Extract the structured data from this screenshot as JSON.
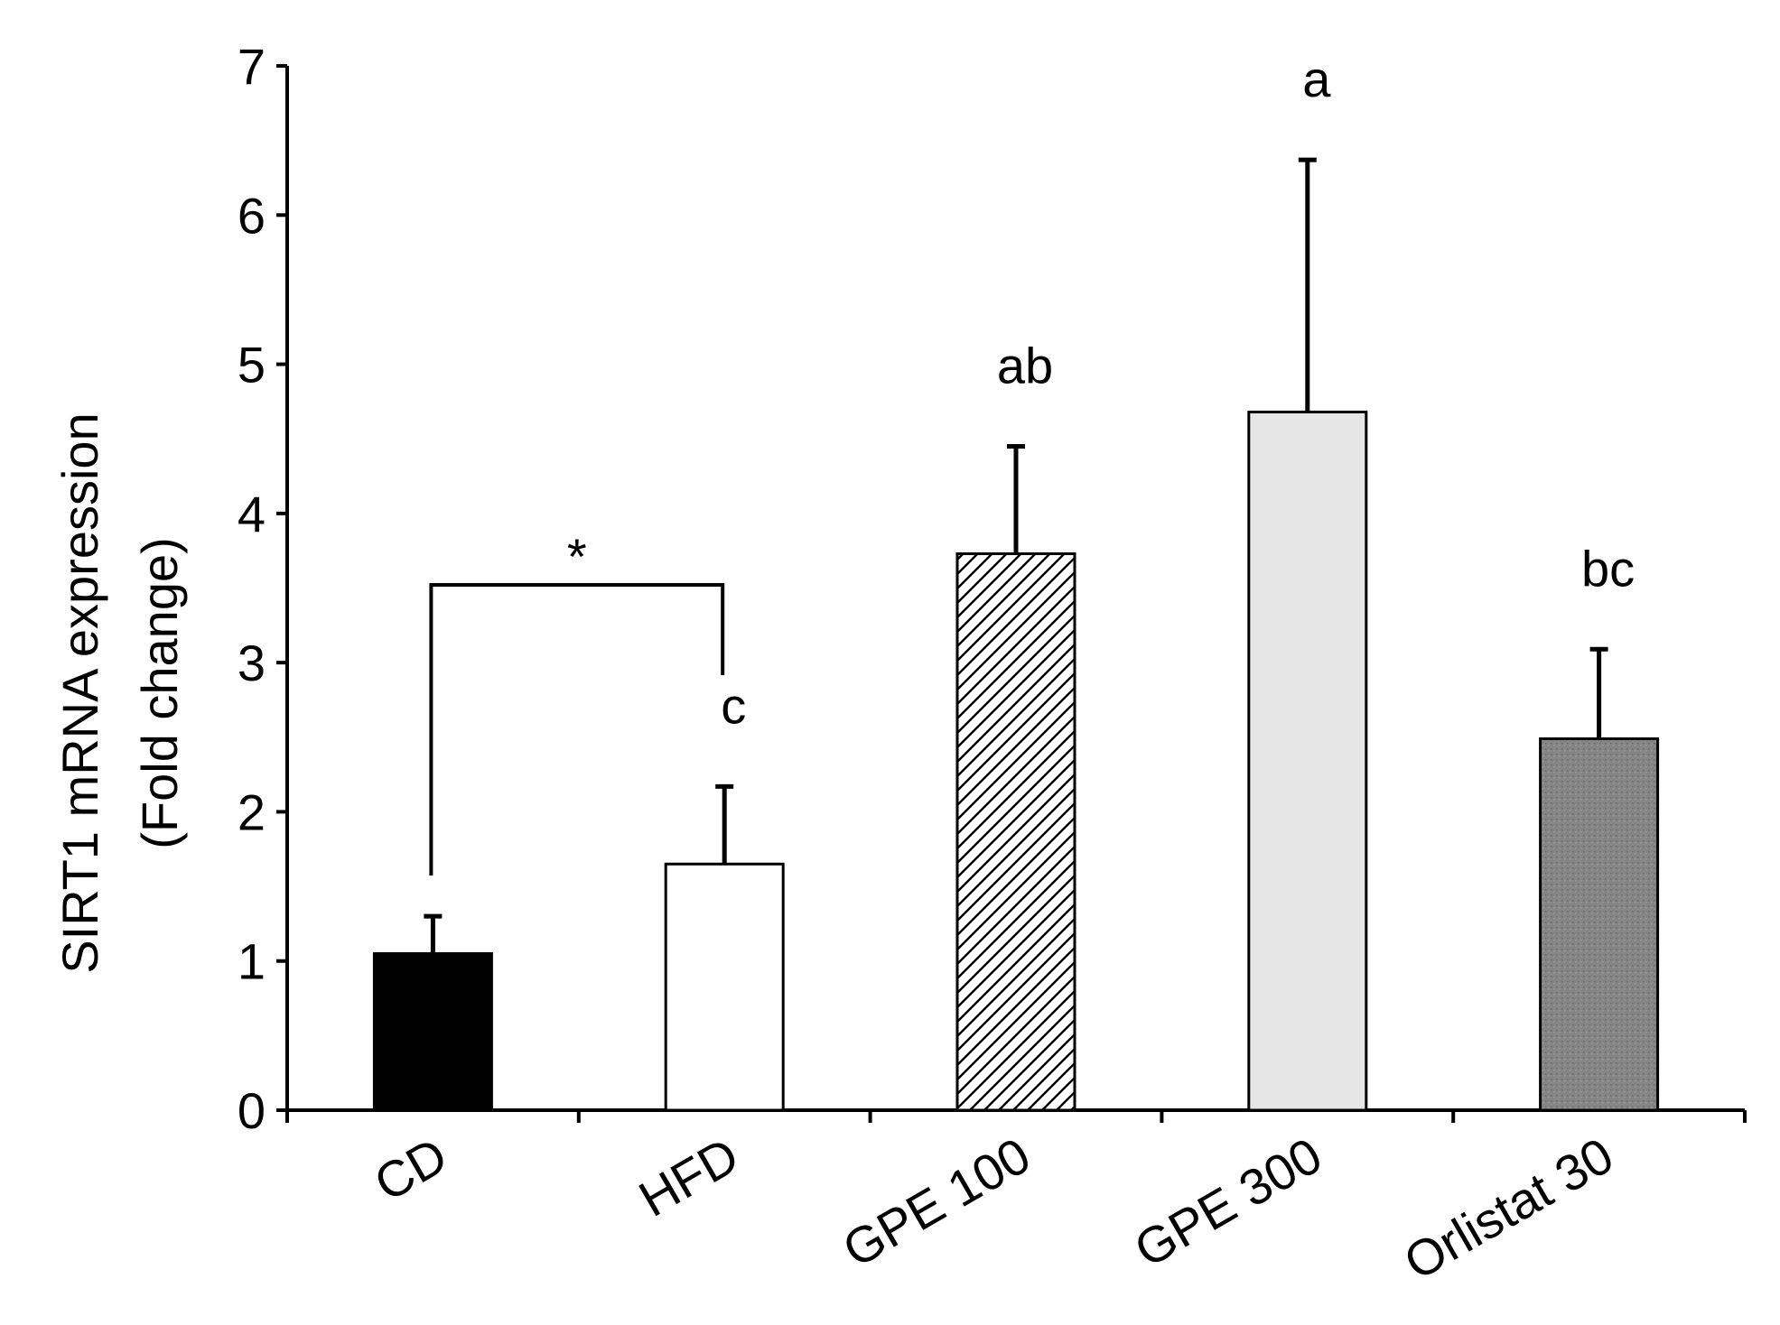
{
  "chart_data": {
    "type": "bar",
    "title": "",
    "xlabel": "",
    "ylabel_line1": "SIRT1 mRNA expression",
    "ylabel_line2": "(Fold change)",
    "ylim": [
      0,
      7
    ],
    "yticks": [
      "0",
      "1",
      "2",
      "3",
      "4",
      "5",
      "6",
      "7"
    ],
    "categories": [
      "CD",
      "HFD",
      "GPE 100",
      "GPE 300",
      "Orlistat 30"
    ],
    "values": [
      1.05,
      1.65,
      3.73,
      4.68,
      2.49
    ],
    "errors": [
      0.25,
      0.52,
      0.72,
      1.69,
      0.6
    ],
    "letters": [
      "",
      "c",
      "ab",
      "a",
      "bc"
    ],
    "fills": [
      "solid-black",
      "white",
      "diagonal-hatch",
      "light-gray",
      "dark-gray-stipple"
    ],
    "significance": {
      "from": "CD",
      "to": "HFD",
      "symbol": "*"
    },
    "legend": "none",
    "grid": false
  },
  "colors": {
    "black": "#000000",
    "white": "#ffffff",
    "light_gray": "#e6e6e6",
    "dark_gray": "#7f7f7f"
  }
}
